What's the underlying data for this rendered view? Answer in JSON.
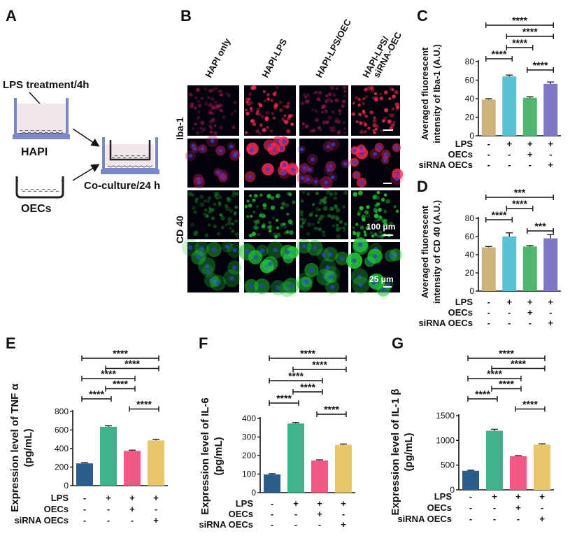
{
  "panels": {
    "A": "A",
    "B": "B",
    "C": "C",
    "D": "D",
    "E": "E",
    "F": "F",
    "G": "G"
  },
  "schematic": {
    "lps_treatment": "LPS treatment/4h",
    "hapi": "HAPI",
    "oecs": "OECs",
    "coculture": "Co-culture/24 h"
  },
  "micro": {
    "columns": [
      "HAPI only",
      "HAPI-LPS",
      "HAPI-LPS/OEC",
      "HAPI-LPS/\nsiRNA-OEC"
    ],
    "rows": [
      "Iba-1",
      "CD 40"
    ],
    "scale1": "100 μm",
    "scale2": "25 μm",
    "colors": {
      "red": "#ff2a55",
      "green": "#22c43a",
      "blue": "#3040d0"
    }
  },
  "treatment_labels": [
    "LPS",
    "OECs",
    "siRNA OECs"
  ],
  "charts": [
    {
      "id": "C",
      "type": "bar",
      "ylabel": [
        "Averaged fluorescent",
        "intensity of Iba-1 (A.U.)"
      ],
      "ylim": [
        0,
        80
      ],
      "yticks": [
        0,
        20,
        40,
        60,
        80
      ],
      "values": [
        39,
        64,
        41,
        56
      ],
      "errors": [
        1,
        1.5,
        1,
        2
      ],
      "colors": [
        "#cdb47a",
        "#5bc2d6",
        "#4fb56f",
        "#7f77c7"
      ],
      "signs": [
        [
          "-",
          "+",
          "+",
          "+"
        ],
        [
          "-",
          "-",
          "+",
          "-"
        ],
        [
          "-",
          "-",
          "-",
          "+"
        ]
      ],
      "sig": [
        {
          "a": 0,
          "b": 3,
          "label": "****"
        },
        {
          "a": 1,
          "b": 3,
          "label": "****"
        },
        {
          "a": 1,
          "b": 2,
          "label": "****"
        },
        {
          "a": 0,
          "b": 1,
          "label": "****"
        },
        {
          "a": 2,
          "b": 3,
          "label": "****"
        }
      ]
    },
    {
      "id": "D",
      "type": "bar",
      "ylabel": [
        "Averaged fluorescent",
        "intensity of CD 40  (A.U.)"
      ],
      "ylim": [
        0,
        80
      ],
      "yticks": [
        0,
        20,
        40,
        60,
        80
      ],
      "values": [
        48,
        60,
        49,
        58
      ],
      "errors": [
        1,
        4,
        1,
        4
      ],
      "colors": [
        "#cdb47a",
        "#5bc2d6",
        "#4fb56f",
        "#7f77c7"
      ],
      "signs": [
        [
          "-",
          "+",
          "+",
          "+"
        ],
        [
          "-",
          "-",
          "+",
          "-"
        ],
        [
          "-",
          "-",
          "-",
          "+"
        ]
      ],
      "sig": [
        {
          "a": 0,
          "b": 3,
          "label": "***"
        },
        {
          "a": 1,
          "b": 2,
          "label": "****"
        },
        {
          "a": 0,
          "b": 1,
          "label": "****"
        },
        {
          "a": 2,
          "b": 3,
          "label": "***"
        }
      ]
    },
    {
      "id": "E",
      "type": "bar",
      "ylabel": [
        "Expression level of TNF α",
        "(pg/mL)"
      ],
      "ylim": [
        0,
        800
      ],
      "yticks": [
        0,
        200,
        400,
        600,
        800
      ],
      "values": [
        240,
        635,
        375,
        488
      ],
      "errors": [
        8,
        10,
        8,
        10
      ],
      "colors": [
        "#2b5d8c",
        "#3fb38c",
        "#ef5a84",
        "#e8c76a"
      ],
      "signs": [
        [
          "-",
          "+",
          "+",
          "+"
        ],
        [
          "-",
          "-",
          "+",
          "-"
        ],
        [
          "-",
          "-",
          "-",
          "+"
        ]
      ],
      "sig": [
        {
          "a": 0,
          "b": 3,
          "label": "****"
        },
        {
          "a": 1,
          "b": 3,
          "label": "****"
        },
        {
          "a": 0,
          "b": 2,
          "label": "****"
        },
        {
          "a": 1,
          "b": 2,
          "label": "****"
        },
        {
          "a": 0,
          "b": 1,
          "label": "****"
        },
        {
          "a": 2,
          "b": 3,
          "label": "****"
        }
      ]
    },
    {
      "id": "F",
      "type": "bar",
      "ylabel": [
        "Expression level of IL-6",
        "(pg/mL)"
      ],
      "ylim": [
        0,
        400
      ],
      "yticks": [
        0,
        100,
        200,
        300,
        400
      ],
      "values": [
        98,
        373,
        173,
        258
      ],
      "errors": [
        4,
        5,
        4,
        4
      ],
      "colors": [
        "#2b5d8c",
        "#3fb38c",
        "#ef5a84",
        "#e8c76a"
      ],
      "signs": [
        [
          "-",
          "+",
          "+",
          "+"
        ],
        [
          "-",
          "-",
          "+",
          "-"
        ],
        [
          "-",
          "-",
          "-",
          "+"
        ]
      ],
      "sig": [
        {
          "a": 0,
          "b": 3,
          "label": "****"
        },
        {
          "a": 1,
          "b": 3,
          "label": "****"
        },
        {
          "a": 0,
          "b": 2,
          "label": "****"
        },
        {
          "a": 1,
          "b": 2,
          "label": "****"
        },
        {
          "a": 0,
          "b": 1,
          "label": "****"
        },
        {
          "a": 2,
          "b": 3,
          "label": "****"
        }
      ]
    },
    {
      "id": "G",
      "type": "bar",
      "ylabel": [
        "Expression level of IL-1 β",
        "(pg/mL)"
      ],
      "ylim": [
        0,
        1500
      ],
      "yticks": [
        0,
        500,
        1000,
        1500
      ],
      "values": [
        385,
        1195,
        680,
        915
      ],
      "errors": [
        12,
        30,
        12,
        15
      ],
      "colors": [
        "#2b5d8c",
        "#3fb38c",
        "#ef5a84",
        "#e8c76a"
      ],
      "signs": [
        [
          "-",
          "+",
          "+",
          "+"
        ],
        [
          "-",
          "-",
          "+",
          "-"
        ],
        [
          "-",
          "-",
          "-",
          "+"
        ]
      ],
      "sig": [
        {
          "a": 0,
          "b": 3,
          "label": "****"
        },
        {
          "a": 1,
          "b": 3,
          "label": "****"
        },
        {
          "a": 0,
          "b": 2,
          "label": "****"
        },
        {
          "a": 1,
          "b": 2,
          "label": "****"
        },
        {
          "a": 0,
          "b": 1,
          "label": "****"
        },
        {
          "a": 2,
          "b": 3,
          "label": "****"
        }
      ]
    }
  ]
}
